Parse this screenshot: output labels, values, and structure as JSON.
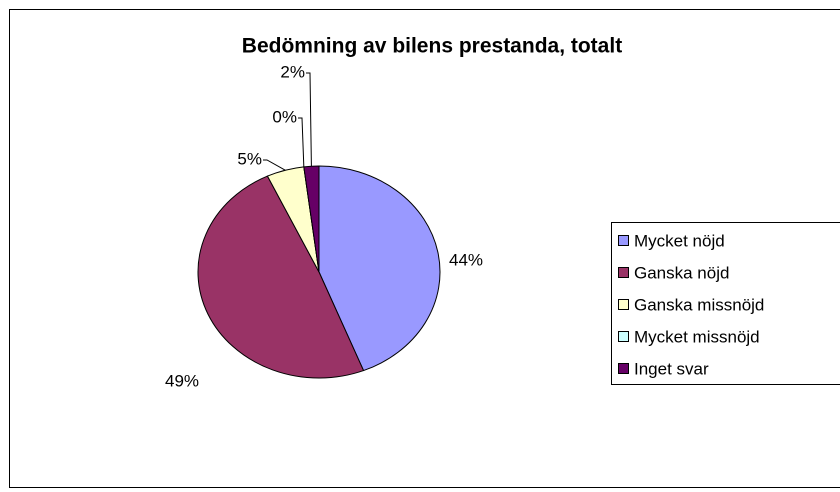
{
  "chart_data": {
    "type": "pie",
    "title": "Bedömning av bilens prestanda, totalt",
    "categories": [
      "Mycket nöjd",
      "Ganska nöjd",
      "Ganska missnöjd",
      "Mycket missnöjd",
      "Inget svar"
    ],
    "values": [
      44,
      49,
      5,
      0,
      2
    ],
    "value_labels": [
      "44%",
      "49%",
      "5%",
      "0%",
      "2%"
    ],
    "colors": [
      "#9999FF",
      "#993366",
      "#FFFFCC",
      "#CCFFFF",
      "#660066"
    ],
    "legend": "right"
  }
}
